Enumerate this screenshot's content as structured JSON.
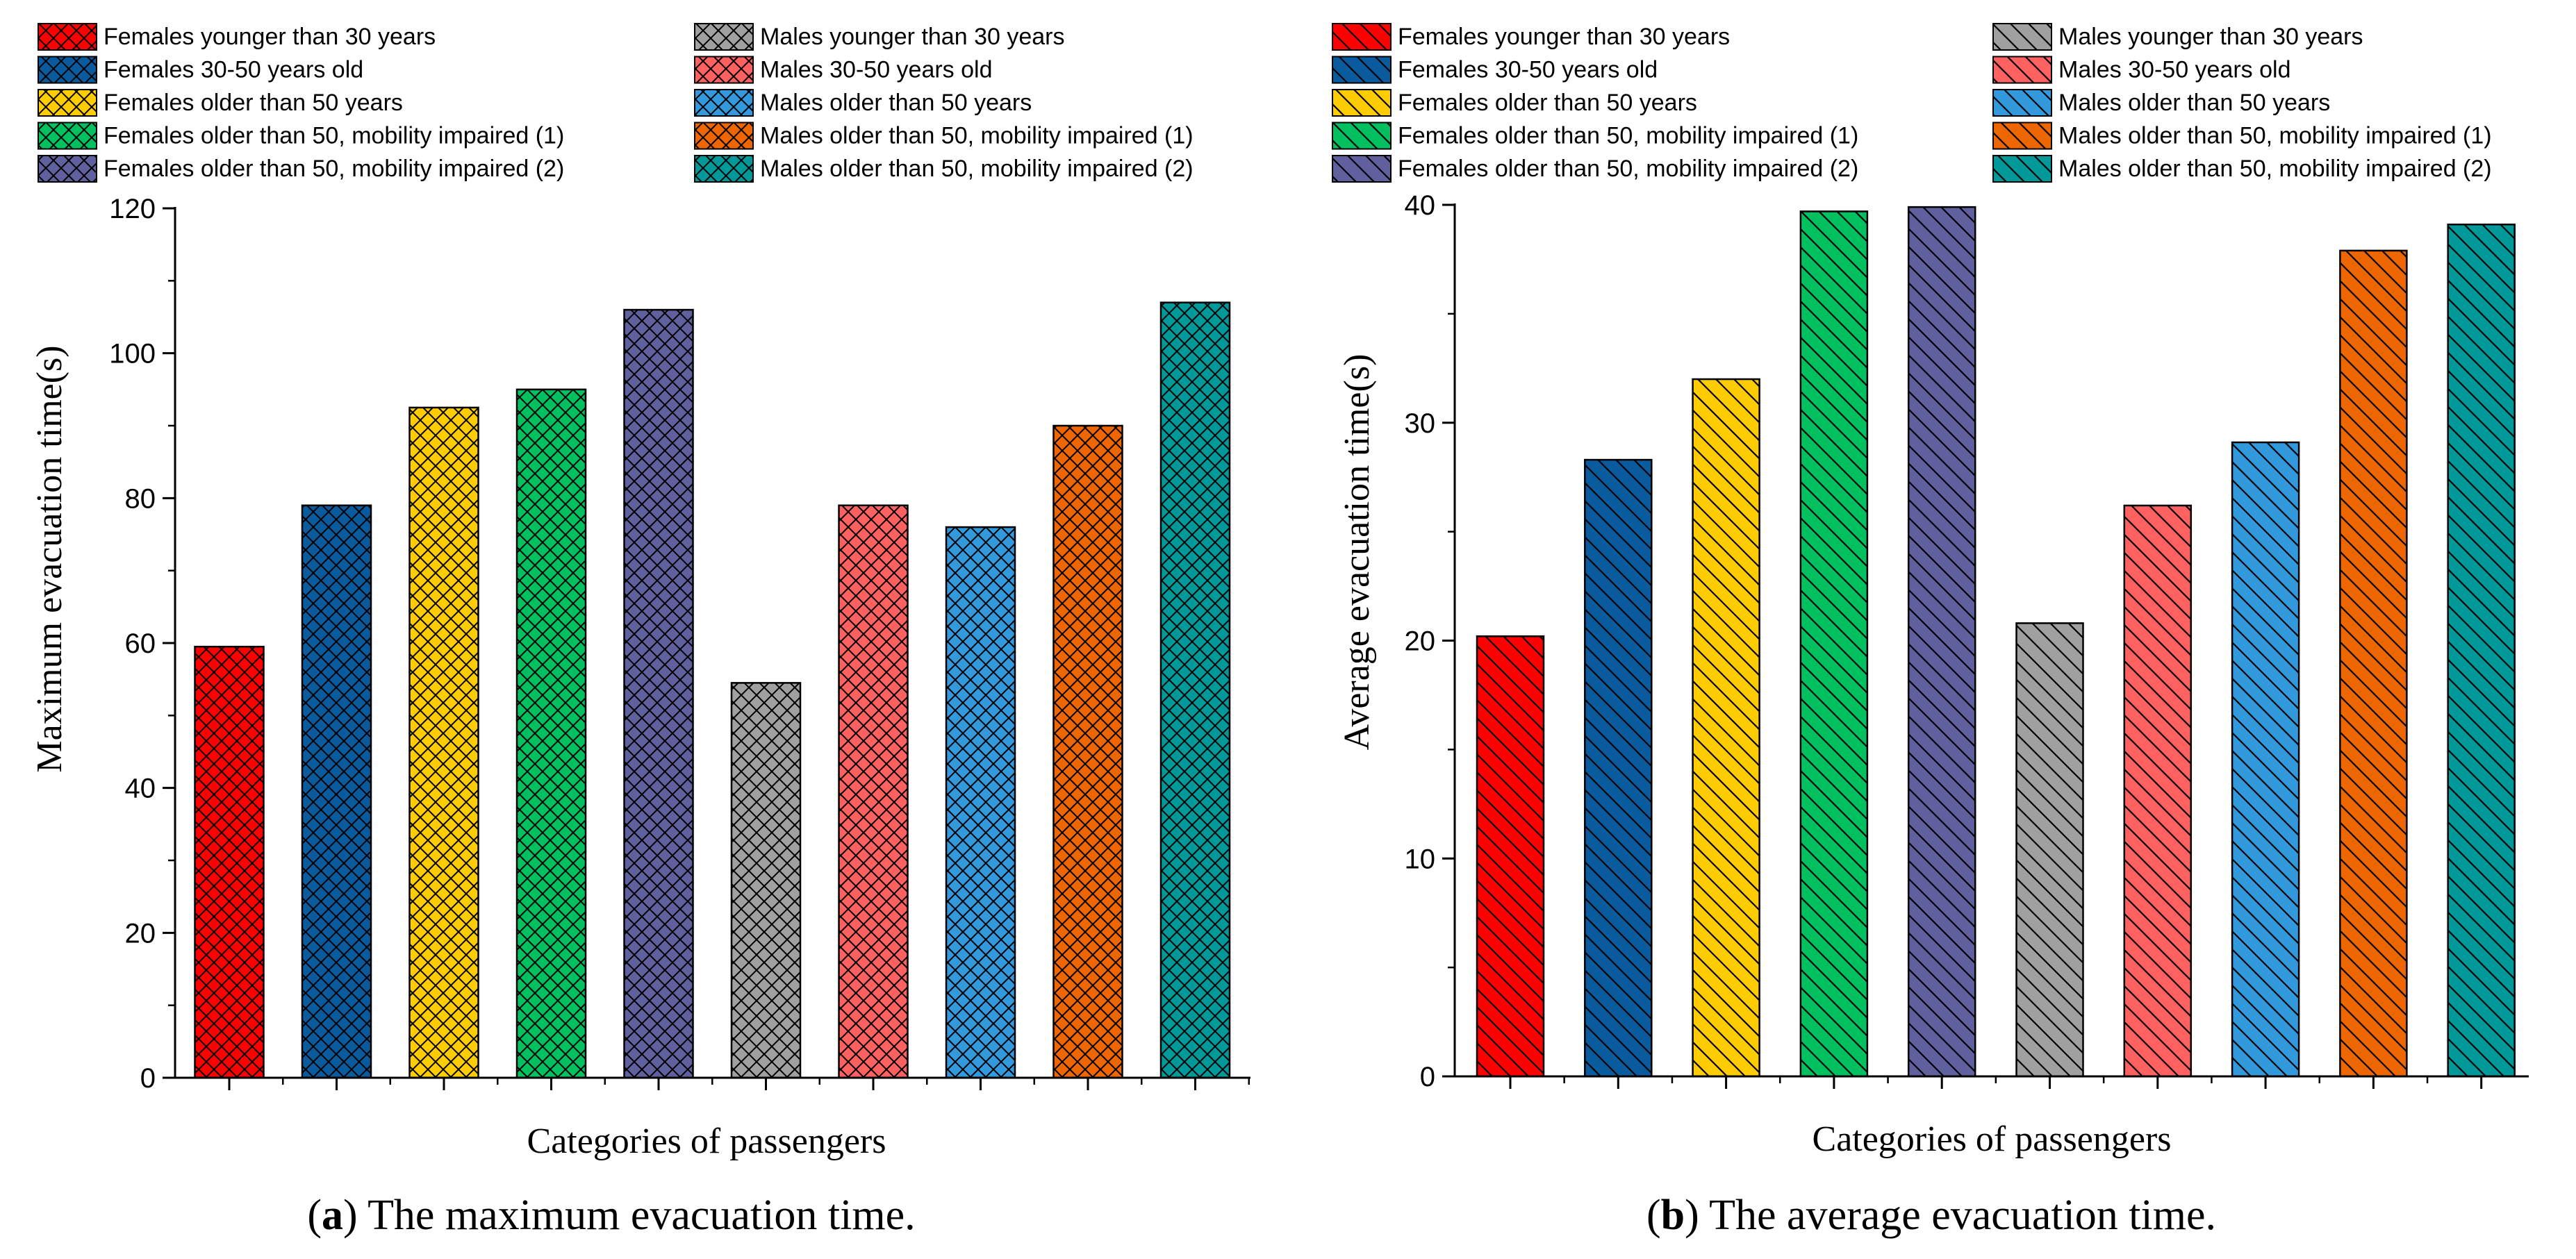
{
  "chart_data": [
    {
      "type": "bar",
      "panel": "a",
      "caption_letter": "a",
      "caption_text": "The maximum evacuation time.",
      "xlabel": "Categories of passengers",
      "ylabel": "Maximum evacuation time(s)",
      "ylim": [
        0,
        120
      ],
      "yticks": [
        0,
        20,
        40,
        60,
        80,
        100,
        120
      ],
      "pattern": "crosshatch",
      "categories": [
        "Females younger than 30 years",
        "Females 30-50 years old",
        "Females older than 50 years",
        "Females older than 50, mobility impaired (1)",
        "Females older than 50, mobility impaired (2)",
        "Males younger than 30 years",
        "Males 30-50 years old",
        "Males older than 50 years",
        "Males older than 50, mobility impaired (1)",
        "Males older than 50, mobility impaired (2)"
      ],
      "values": [
        59.5,
        79,
        92.5,
        95,
        106,
        54.5,
        79,
        76,
        90,
        107
      ]
    },
    {
      "type": "bar",
      "panel": "b",
      "caption_letter": "b",
      "caption_text": "The average evacuation time.",
      "xlabel": "Categories of passengers",
      "ylabel": "Average evacuation time(s)",
      "ylim": [
        0,
        40
      ],
      "yticks": [
        0,
        10,
        20,
        30,
        40
      ],
      "pattern": "diagonal",
      "categories": [
        "Females younger than 30 years",
        "Females 30-50 years old",
        "Females older than 50 years",
        "Females older than 50, mobility impaired (1)",
        "Females older than 50, mobility impaired (2)",
        "Males younger than 30 years",
        "Males 30-50 years old",
        "Males older than 50 years",
        "Males older than 50, mobility impaired (1)",
        "Males older than 50, mobility impaired (2)"
      ],
      "values": [
        20.2,
        28.3,
        32.0,
        39.7,
        39.9,
        20.8,
        26.2,
        29.1,
        37.9,
        39.1
      ]
    }
  ],
  "colors": [
    "#ff0000",
    "#0a5a9e",
    "#ffcc00",
    "#00c060",
    "#60609e",
    "#a0a0a0",
    "#ff6060",
    "#3399dd",
    "#ee6600",
    "#009999"
  ]
}
